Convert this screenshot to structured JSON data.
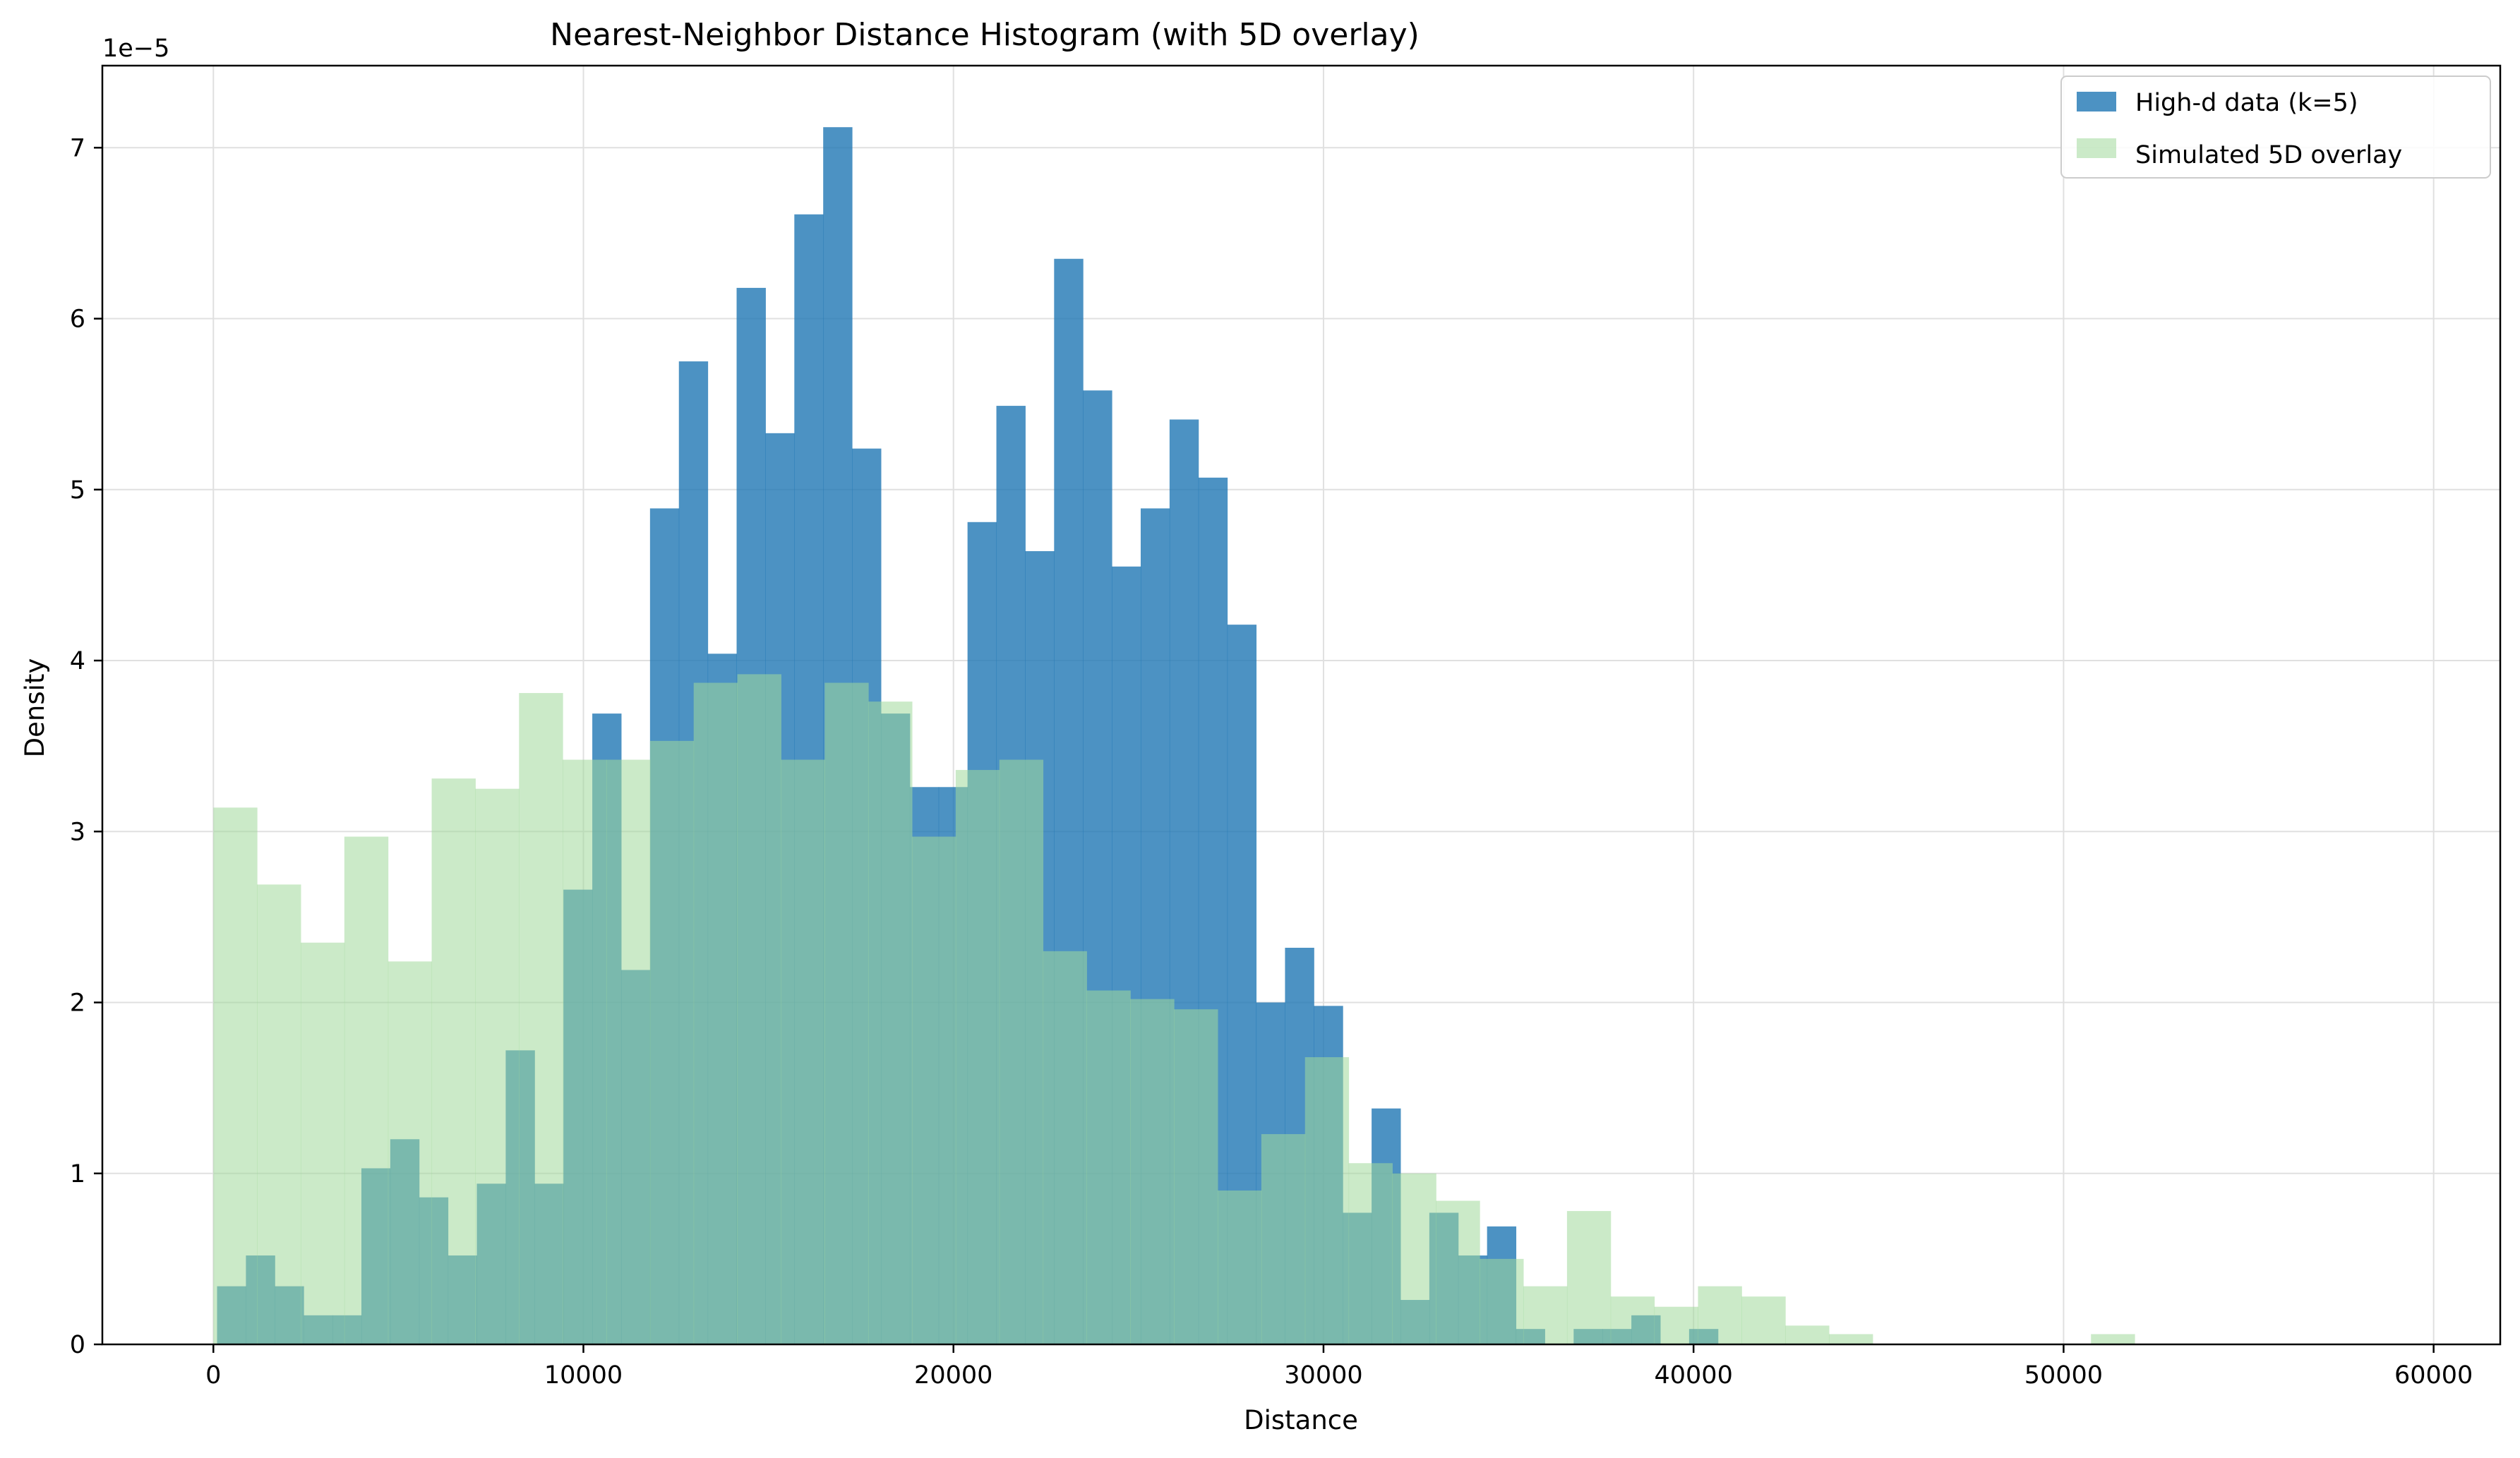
{
  "chart_data": {
    "type": "bar",
    "title": "Nearest-Neighbor Distance Histogram (with 5D overlay)",
    "xlabel": "Distance",
    "ylabel": "Density",
    "y_multiplier_label": "1e−5",
    "xlim": [
      -3000,
      61800
    ],
    "ylim": [
      0,
      7.48
    ],
    "x_ticks": [
      0,
      10000,
      20000,
      30000,
      40000,
      50000,
      60000
    ],
    "y_ticks": [
      0,
      1,
      2,
      3,
      4,
      5,
      6,
      7
    ],
    "grid": true,
    "legend_position": "upper right",
    "series": [
      {
        "name": "High-d data (k=5)",
        "color": "#1f77b4",
        "opacity": 0.8,
        "bin_start": 100,
        "bin_width": 780,
        "values": [
          0.34,
          0.52,
          0.34,
          0.17,
          0.17,
          1.03,
          1.2,
          0.86,
          0.52,
          0.94,
          1.72,
          0.94,
          2.66,
          3.69,
          2.19,
          4.89,
          5.75,
          4.04,
          6.18,
          5.33,
          6.61,
          7.12,
          5.24,
          3.69,
          3.26,
          3.26,
          4.81,
          5.49,
          4.64,
          6.35,
          5.58,
          4.55,
          4.89,
          5.41,
          5.07,
          4.21,
          2.0,
          2.32,
          1.98,
          0.77,
          1.38,
          0.26,
          0.77,
          0.52,
          0.69,
          0.09,
          0.0,
          0.09,
          0.09,
          0.17,
          0.0,
          0.09
        ]
      },
      {
        "name": "Simulated 5D overlay",
        "color": "#a1d99b",
        "opacity": 0.55,
        "bin_start": 0,
        "bin_width": 1180,
        "values": [
          3.14,
          2.69,
          2.35,
          2.97,
          2.24,
          3.31,
          3.25,
          3.81,
          3.42,
          3.42,
          3.53,
          3.87,
          3.92,
          3.42,
          3.87,
          3.76,
          2.97,
          3.36,
          3.42,
          2.3,
          2.07,
          2.02,
          1.96,
          0.9,
          1.23,
          1.68,
          1.06,
          1.0,
          0.84,
          0.5,
          0.34,
          0.78,
          0.28,
          0.22,
          0.34,
          0.28,
          0.11,
          0.06,
          0.0,
          0.0,
          0.0,
          0.0,
          0.0,
          0.06,
          0.0,
          0.0,
          0.0,
          0.0,
          0.0,
          0.0,
          0.0,
          0.0,
          0.0,
          0.0,
          0.0,
          0.0,
          0.0,
          0.0,
          0.0,
          0.0,
          0.0,
          0.0,
          0.0,
          0.0,
          0.0,
          0.0,
          0.0,
          0.0,
          0.0,
          0.0,
          0.0,
          0.0,
          0.0,
          0.0,
          0.0,
          0.0,
          0.0,
          0.0,
          0.0,
          0.0,
          0.0,
          0.0,
          0.0,
          0.0,
          0.0,
          0.0,
          0.0,
          0.0,
          0.0,
          0.0
        ]
      }
    ]
  }
}
